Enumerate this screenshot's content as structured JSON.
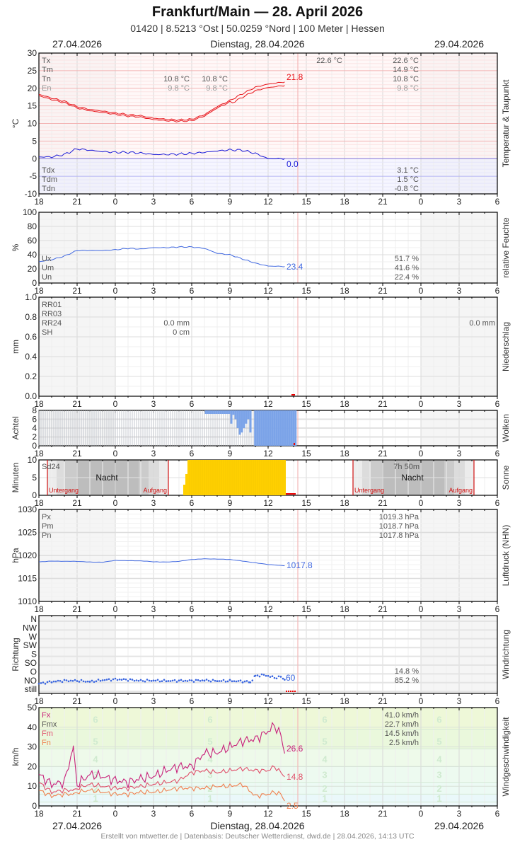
{
  "header": {
    "title": "Frankfurt/Main  —  28. April 2026",
    "subtitle": "01420  |  8.5213 °Ost  |  50.0259 °Nord  |  100 Meter  |  Hessen",
    "date_left": "27.04.2026",
    "date_center": "Dienstag, 28.04.2026",
    "date_right": "29.04.2026"
  },
  "footer": {
    "text": "Erstellt von mtwetter.de | Datenbasis: Deutscher Wetterdienst, dwd.de | 28.04.2026, 14:13 UTC",
    "date_left": "27.04.2026",
    "date_center": "Dienstag, 28.04.2026",
    "date_right": "29.04.2026"
  },
  "x_ticks": [
    "18",
    "21",
    "0",
    "3",
    "6",
    "9",
    "12",
    "15",
    "18",
    "21",
    "0",
    "3",
    "6"
  ],
  "colors": {
    "temp": "#e8141a",
    "dew": "#1a1ad8",
    "humidity": "#4169e1",
    "cloud": "#7ba3e8",
    "sun": "#ffd000",
    "pressure": "#4169e1",
    "wind_dir": "#3a66e0",
    "fx": "#c8207a",
    "fm": "#e0506a",
    "fn": "#f08050",
    "now_line": "#f4b8b8",
    "sunline": "#d01010"
  },
  "chart_data": [
    {
      "type": "line",
      "title": "Temperatur & Taupunkt",
      "ylabel": "°C",
      "ylim": [
        -10,
        30
      ],
      "yticks": [
        "30",
        "25",
        "20",
        "15",
        "10",
        "5",
        "0",
        "-5",
        "-10"
      ],
      "x": [
        18,
        19,
        20,
        21,
        22,
        23,
        0,
        1,
        2,
        3,
        4,
        5,
        6,
        7,
        8,
        9,
        10,
        11,
        12,
        13.3
      ],
      "series": [
        {
          "name": "Temperatur",
          "values": [
            18.3,
            17.2,
            16.3,
            14.8,
            14.0,
            13.5,
            13.0,
            12.5,
            12.2,
            11.5,
            11.2,
            11.0,
            11.2,
            12.5,
            14.8,
            16.5,
            18.5,
            20.3,
            21.2,
            21.8
          ]
        },
        {
          "name": "Taupunkt",
          "values": [
            0.5,
            0.5,
            1.2,
            2.8,
            2.4,
            2.0,
            1.8,
            1.8,
            1.6,
            1.2,
            1.2,
            1.3,
            1.5,
            1.8,
            2.2,
            2.5,
            2.4,
            1.5,
            0.0,
            0.0
          ]
        }
      ],
      "legend": {
        "Tx": "22.6 °C",
        "Tm": "14.9 °C",
        "Tn": "10.8 °C",
        "En": "9.8 °C",
        "Tdx": "3.1 °C",
        "Tdm": "1.5 °C",
        "Tdn": "-0.8 °C"
      },
      "annotations": {
        "tx_top": "22.6 °C",
        "tn_night": "10.8 °C",
        "tn_night2": "10.8 °C",
        "en_night": "9.8 °C",
        "en_night2": "9.8 °C",
        "last_temp": "21.8",
        "last_dew": "0.0"
      },
      "right_label": "Temperatur & Taupunkt"
    },
    {
      "type": "line",
      "title": "relative Feuchte",
      "ylabel": "%",
      "ylim": [
        0,
        100
      ],
      "yticks": [
        "100",
        "80",
        "60",
        "40",
        "20",
        "0"
      ],
      "x": [
        18,
        19,
        20,
        21,
        22,
        23,
        0,
        1,
        2,
        3,
        4,
        5,
        6,
        7,
        8,
        9,
        10,
        11,
        12,
        13.3
      ],
      "series": [
        {
          "name": "Feuchte",
          "values": [
            30,
            33,
            38,
            46,
            46,
            46,
            47,
            49,
            48,
            50,
            50,
            51,
            51,
            49,
            42,
            40,
            34,
            28,
            24,
            23.4
          ]
        }
      ],
      "legend": {
        "Ux": "51.7 %",
        "Um": "41.6 %",
        "Un": "22.4 %"
      },
      "annotations": {
        "last": "23.4"
      },
      "right_label": "relative Feuchte"
    },
    {
      "type": "bar",
      "title": "Niederschlag",
      "ylabel": "mm",
      "ylim": [
        0,
        1.0
      ],
      "yticks": [
        "1.0",
        "0.8",
        "0.6",
        "0.4",
        "0.2",
        "0.0"
      ],
      "legend": {
        "RR01": "",
        "RR03": "",
        "RR24": "0.0 mm",
        "SH": "0 cm"
      },
      "annotations": {
        "rr24_next": "0.0 mm"
      },
      "right_label": "Niederschlag"
    },
    {
      "type": "bar",
      "title": "Wolken",
      "ylabel": "Achtel",
      "ylim": [
        0,
        8
      ],
      "yticks": [
        "8",
        "6",
        "4",
        "2",
        "0"
      ],
      "x": [
        6.5,
        7,
        7.5,
        8,
        8.5,
        9,
        9.3,
        9.6,
        10,
        10.3,
        10.6,
        11,
        12,
        13,
        14
      ],
      "values": [
        8,
        8,
        7,
        7,
        7,
        8,
        6,
        3,
        5,
        1,
        4,
        8,
        8,
        8,
        8
      ],
      "right_label": "Wolken"
    },
    {
      "type": "bar",
      "title": "Sonne",
      "ylabel": "Minuten",
      "ylim": [
        0,
        10
      ],
      "yticks": [
        "10",
        "5",
        "0"
      ],
      "values_note": "Sunshine 10 min/10min from ~5.6h to 13.3h",
      "legend": {
        "Sd24": "Sd24"
      },
      "annotations": {
        "night1": "Nacht",
        "night2": "Nacht",
        "sunset": "Untergang",
        "sunrise": "Aufgang",
        "sunset2": "Untergang",
        "sunrise2": "Aufgang",
        "sd24_value": "7h 50m"
      },
      "right_label": "Sonne"
    },
    {
      "type": "line",
      "title": "Luftdruck (NHN)",
      "ylabel": "hPa",
      "ylim": [
        1010,
        1030
      ],
      "yticks": [
        "1030",
        "1025",
        "1020",
        "1015",
        "1010"
      ],
      "x": [
        18,
        19,
        20,
        21,
        22,
        23,
        0,
        1,
        2,
        3,
        4,
        5,
        6,
        7,
        8,
        9,
        10,
        11,
        12,
        13.3
      ],
      "series": [
        {
          "name": "Luftdruck",
          "values": [
            1018.6,
            1018.8,
            1018.7,
            1018.7,
            1018.6,
            1018.5,
            1018.9,
            1018.9,
            1018.8,
            1018.6,
            1018.6,
            1018.7,
            1019.1,
            1019.3,
            1019.2,
            1019.1,
            1018.8,
            1018.4,
            1018.0,
            1017.8
          ]
        }
      ],
      "legend": {
        "Px": "1019.3 hPa",
        "Pm": "1018.7 hPa",
        "Pn": "1017.8 hPa"
      },
      "annotations": {
        "last": "1017.8"
      },
      "right_label": "Luftdruck (NHN)"
    },
    {
      "type": "scatter",
      "title": "Windrichtung",
      "ylabel": "Richtung",
      "yticks": [
        "N",
        "NW",
        "W",
        "SW",
        "S",
        "SO",
        "O",
        "NO",
        "still"
      ],
      "x": [
        18,
        19,
        20,
        21,
        22,
        23,
        0,
        1,
        2,
        3,
        4,
        5,
        6,
        7,
        8,
        9,
        10,
        10.6,
        11,
        11.5,
        12,
        12.5,
        13,
        13.3
      ],
      "values": [
        40,
        50,
        55,
        55,
        50,
        58,
        62,
        60,
        55,
        56,
        54,
        55,
        55,
        57,
        54,
        54,
        52,
        48,
        78,
        85,
        80,
        70,
        75,
        60
      ],
      "legend": {
        "r1": "14.8 %",
        "r2": "85.2 %"
      },
      "annotations": {
        "last": "60"
      },
      "right_label": "Windrichtung"
    },
    {
      "type": "line",
      "title": "Windgeschwindigkeit",
      "ylabel": "km/h",
      "ylim": [
        0,
        50
      ],
      "yticks": [
        "50",
        "40",
        "30",
        "20",
        "10",
        "0"
      ],
      "x": [
        18,
        19,
        20,
        20.7,
        21,
        22,
        23,
        0,
        1,
        2,
        3,
        4,
        5,
        6,
        7,
        8,
        9,
        10,
        11,
        12,
        12.5,
        13,
        13.3
      ],
      "series": [
        {
          "name": "Fx",
          "values": [
            16,
            11,
            12,
            30,
            11,
            16,
            15,
            13,
            12,
            14,
            15,
            18,
            20,
            20,
            27,
            27,
            30,
            33,
            34,
            38,
            41,
            36,
            26.6
          ]
        },
        {
          "name": "Fm",
          "values": [
            12,
            7,
            8,
            8,
            9,
            11,
            10,
            9,
            9,
            10,
            11,
            12,
            13,
            17,
            18,
            17,
            18,
            19,
            18,
            18,
            20,
            17,
            14.8
          ]
        },
        {
          "name": "Fn",
          "values": [
            8,
            5,
            6,
            6,
            7,
            8,
            7,
            6,
            6,
            7,
            7,
            8,
            9,
            9,
            9,
            10,
            10,
            11,
            5,
            6,
            7,
            6,
            2.5
          ]
        }
      ],
      "legend": {
        "Fx": "41.0 km/h",
        "Fmx": "22.7 km/h",
        "Fm": "14.5 km/h",
        "Fn": "2.5 km/h"
      },
      "annotations": {
        "last_fx": "26.6",
        "last_fm": "14.8",
        "last_fn": "2.5"
      },
      "bft_labels": [
        "1",
        "2",
        "3",
        "4",
        "5",
        "6"
      ],
      "right_label": "Windgeschwindigkeit"
    }
  ]
}
